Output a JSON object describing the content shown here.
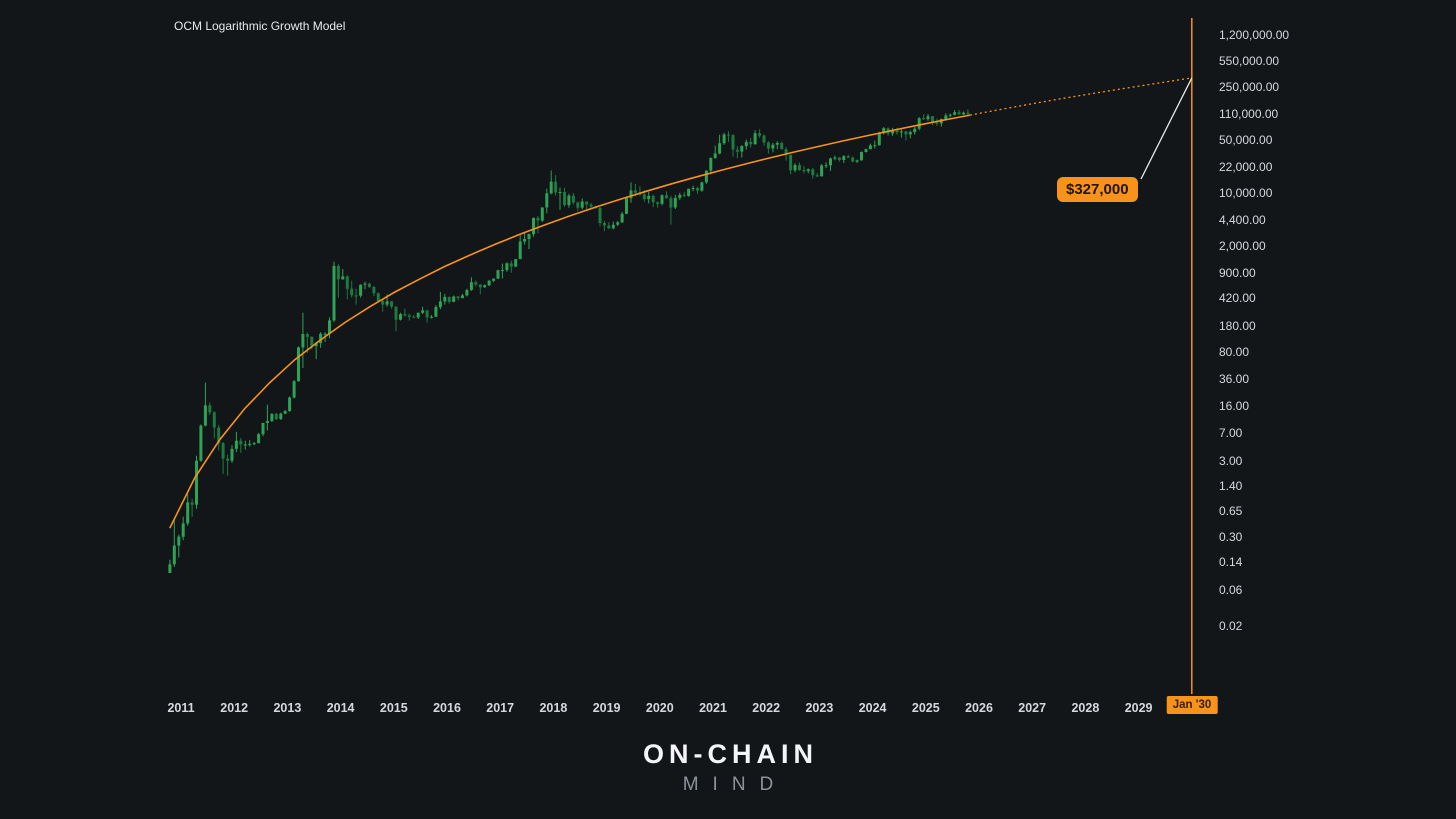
{
  "header": {
    "title": "OCM Logarithmic Growth Model"
  },
  "watermark": {
    "line1": "ON-CHAIN",
    "line2": "MIND"
  },
  "annotation": {
    "price_target_label": "$327,000",
    "target_date_label": "Jan '30"
  },
  "colors": {
    "background": "#131619",
    "candle_up": "#2fa355",
    "candle_down": "#1d7a40",
    "model_line": "#f7931a",
    "accent_orange": "#f7931a",
    "callout_bg": "#f7931a",
    "callout_text": "#241503",
    "axis_text": "#d5d8dd",
    "connector": "#e8e8e8"
  },
  "chart_data": {
    "type": "candlestick",
    "title": "OCM Logarithmic Growth Model",
    "y_scale": "log",
    "legend_position": "none",
    "grid": false,
    "y_axis_prices": [
      1200000,
      550000,
      250000,
      110000,
      50000,
      22000,
      10000,
      4400,
      2000,
      900,
      420,
      180,
      80,
      36,
      16,
      7,
      3,
      1.4,
      0.65,
      0.3,
      0.14,
      0.06,
      0.02
    ],
    "x_axis": {
      "years": [
        "2011",
        "2012",
        "2013",
        "2014",
        "2015",
        "2016",
        "2017",
        "2018",
        "2019",
        "2020",
        "2021",
        "2022",
        "2023",
        "2024",
        "2025",
        "2026",
        "2027",
        "2028",
        "2029"
      ],
      "highlight_label": "Jan '30"
    },
    "candles": {
      "start_month": "2010-10",
      "interval": "1M",
      "columns": [
        "high",
        "low",
        "close"
      ],
      "hlc": [
        [
          0.15,
          0.1,
          0.13
        ],
        [
          0.5,
          0.12,
          0.23
        ],
        [
          0.32,
          0.16,
          0.3
        ],
        [
          0.55,
          0.27,
          0.45
        ],
        [
          1.1,
          0.42,
          0.85
        ],
        [
          0.95,
          0.55,
          0.79
        ],
        [
          3.5,
          0.7,
          3.0
        ],
        [
          9.0,
          2.9,
          8.7
        ],
        [
          31.9,
          8.5,
          16.1
        ],
        [
          17.5,
          12.0,
          13.0
        ],
        [
          13.5,
          5.9,
          8.2
        ],
        [
          8.9,
          4.1,
          5.1
        ],
        [
          5.3,
          2.0,
          3.2
        ],
        [
          3.6,
          1.9,
          3.0
        ],
        [
          4.8,
          2.8,
          4.3
        ],
        [
          7.2,
          3.9,
          5.5
        ],
        [
          6.0,
          3.8,
          4.9
        ],
        [
          5.5,
          4.2,
          4.9
        ],
        [
          5.6,
          4.6,
          5.0
        ],
        [
          5.3,
          4.8,
          5.1
        ],
        [
          7.0,
          5.1,
          6.7
        ],
        [
          9.5,
          6.3,
          9.4
        ],
        [
          16.4,
          7.5,
          10.0
        ],
        [
          12.7,
          9.7,
          12.4
        ],
        [
          12.8,
          10.3,
          10.6
        ],
        [
          12.9,
          10.3,
          12.5
        ],
        [
          14.0,
          12.3,
          13.5
        ],
        [
          21.0,
          13.2,
          20.4
        ],
        [
          34.5,
          19.8,
          33.4
        ],
        [
          95.7,
          33.0,
          93.0
        ],
        [
          266,
          50.0,
          139
        ],
        [
          146,
          79.0,
          128
        ],
        [
          130,
          88.0,
          97.0
        ],
        [
          110,
          65.0,
          106
        ],
        [
          147,
          92.0,
          141
        ],
        [
          147,
          110,
          141
        ],
        [
          232,
          123,
          211
        ],
        [
          1242,
          200,
          1100
        ],
        [
          1160,
          420,
          732
        ],
        [
          1000,
          720,
          800
        ],
        [
          830,
          400,
          550
        ],
        [
          700,
          420,
          450
        ],
        [
          550,
          340,
          445
        ],
        [
          630,
          420,
          620
        ],
        [
          680,
          540,
          640
        ],
        [
          660,
          560,
          580
        ],
        [
          600,
          440,
          480
        ],
        [
          490,
          365,
          380
        ],
        [
          400,
          275,
          340
        ],
        [
          460,
          320,
          375
        ],
        [
          380,
          300,
          320
        ],
        [
          320,
          152,
          215
        ],
        [
          265,
          210,
          255
        ],
        [
          300,
          236,
          245
        ],
        [
          260,
          210,
          235
        ],
        [
          248,
          225,
          230
        ],
        [
          268,
          220,
          265
        ],
        [
          318,
          255,
          285
        ],
        [
          288,
          198,
          230
        ],
        [
          248,
          223,
          235
        ],
        [
          335,
          235,
          315
        ],
        [
          500,
          295,
          375
        ],
        [
          470,
          340,
          430
        ],
        [
          435,
          350,
          370
        ],
        [
          448,
          365,
          435
        ],
        [
          440,
          385,
          415
        ],
        [
          470,
          410,
          450
        ],
        [
          550,
          435,
          530
        ],
        [
          780,
          515,
          670
        ],
        [
          705,
          590,
          625
        ],
        [
          630,
          465,
          575
        ],
        [
          630,
          565,
          610
        ],
        [
          720,
          595,
          700
        ],
        [
          755,
          670,
          745
        ],
        [
          980,
          740,
          965
        ],
        [
          1180,
          750,
          970
        ],
        [
          1220,
          920,
          1190
        ],
        [
          1290,
          890,
          1080
        ],
        [
          1350,
          1060,
          1350
        ],
        [
          2780,
          1350,
          2300
        ],
        [
          3000,
          2100,
          2480
        ],
        [
          2930,
          1830,
          2875
        ],
        [
          4765,
          2670,
          4700
        ],
        [
          4980,
          2950,
          4340
        ],
        [
          6480,
          4150,
          6450
        ],
        [
          11400,
          5400,
          9900
        ],
        [
          19800,
          9600,
          14100
        ],
        [
          17200,
          9200,
          10200
        ],
        [
          11800,
          6000,
          10300
        ],
        [
          11700,
          6600,
          6930
        ],
        [
          9760,
          6430,
          9240
        ],
        [
          9990,
          7050,
          7500
        ],
        [
          7750,
          5770,
          6400
        ],
        [
          8500,
          6070,
          7730
        ],
        [
          7760,
          5860,
          7030
        ],
        [
          7410,
          6120,
          6630
        ],
        [
          6760,
          6200,
          6340
        ],
        [
          6540,
          3620,
          4020
        ],
        [
          4300,
          3150,
          3740
        ],
        [
          4110,
          3350,
          3440
        ],
        [
          4190,
          3330,
          3820
        ],
        [
          4290,
          3670,
          4100
        ],
        [
          5640,
          4030,
          5320
        ],
        [
          9070,
          5270,
          8560
        ],
        [
          13800,
          7450,
          10800
        ],
        [
          13150,
          9050,
          10100
        ],
        [
          12300,
          9230,
          9600
        ],
        [
          10950,
          7700,
          8300
        ],
        [
          10350,
          7300,
          9150
        ],
        [
          9500,
          6520,
          7550
        ],
        [
          7750,
          6430,
          7200
        ],
        [
          9550,
          6850,
          9350
        ],
        [
          10500,
          8400,
          8550
        ],
        [
          9200,
          3850,
          6440
        ],
        [
          9450,
          6150,
          8620
        ],
        [
          10050,
          8100,
          9450
        ],
        [
          10380,
          8830,
          9140
        ],
        [
          11440,
          8900,
          11350
        ],
        [
          12470,
          10550,
          11650
        ],
        [
          12050,
          9800,
          10780
        ],
        [
          14100,
          10400,
          13800
        ],
        [
          19860,
          13200,
          19700
        ],
        [
          29300,
          17600,
          29000
        ],
        [
          42000,
          28150,
          33100
        ],
        [
          58350,
          32300,
          45200
        ],
        [
          61800,
          43000,
          58800
        ],
        [
          64850,
          46930,
          57750
        ],
        [
          59600,
          30000,
          37300
        ],
        [
          41300,
          28800,
          35000
        ],
        [
          42400,
          29300,
          41500
        ],
        [
          50500,
          37300,
          47100
        ],
        [
          52900,
          39600,
          43800
        ],
        [
          67000,
          43300,
          61300
        ],
        [
          69000,
          53250,
          57000
        ],
        [
          59100,
          42000,
          46200
        ],
        [
          47990,
          32950,
          38500
        ],
        [
          45800,
          34300,
          43200
        ],
        [
          48200,
          37550,
          45500
        ],
        [
          47450,
          37580,
          37700
        ],
        [
          40000,
          26700,
          31800
        ],
        [
          31950,
          17600,
          19900
        ],
        [
          24670,
          18800,
          23300
        ],
        [
          25200,
          19550,
          20050
        ],
        [
          22800,
          18100,
          19400
        ],
        [
          21000,
          18150,
          20500
        ],
        [
          21480,
          15480,
          17150
        ],
        [
          18400,
          16250,
          16550
        ],
        [
          23960,
          16500,
          23100
        ],
        [
          25250,
          21400,
          23150
        ],
        [
          29200,
          19550,
          28500
        ],
        [
          31050,
          27050,
          29250
        ],
        [
          29850,
          25800,
          27200
        ],
        [
          31400,
          24800,
          30480
        ],
        [
          31800,
          28850,
          29230
        ],
        [
          30200,
          25350,
          25930
        ],
        [
          27500,
          24900,
          26970
        ],
        [
          35150,
          26550,
          34650
        ],
        [
          38400,
          34100,
          37700
        ],
        [
          44700,
          37600,
          42250
        ],
        [
          48970,
          38500,
          42580
        ],
        [
          64000,
          41880,
          61200
        ],
        [
          73800,
          59000,
          71330
        ],
        [
          72800,
          56500,
          60640
        ],
        [
          71950,
          56550,
          67500
        ],
        [
          71900,
          58400,
          62700
        ],
        [
          70000,
          53500,
          64600
        ],
        [
          65600,
          49050,
          58970
        ],
        [
          66500,
          52550,
          63300
        ],
        [
          73600,
          58900,
          70200
        ],
        [
          99800,
          66800,
          96400
        ],
        [
          108300,
          91200,
          93400
        ],
        [
          109350,
          89200,
          102400
        ],
        [
          102500,
          78250,
          84350
        ],
        [
          95000,
          76600,
          82550
        ],
        [
          95750,
          74500,
          94200
        ],
        [
          112000,
          93300,
          104600
        ],
        [
          110500,
          98300,
          107100
        ],
        [
          123200,
          105100,
          115800
        ],
        [
          124500,
          107300,
          108200
        ],
        [
          118000,
          107200,
          114000
        ],
        [
          126200,
          103600,
          110000
        ]
      ]
    },
    "model_curve": {
      "name": "OCM Logarithmic Growth Model",
      "solid": [
        [
          2010.79,
          0.39
        ],
        [
          2011.26,
          1.79
        ],
        [
          2011.73,
          5.7
        ],
        [
          2012.2,
          14.6
        ],
        [
          2012.67,
          32
        ],
        [
          2013.14,
          64
        ],
        [
          2013.61,
          115
        ],
        [
          2014.08,
          198
        ],
        [
          2014.55,
          319
        ],
        [
          2015.02,
          498
        ],
        [
          2015.49,
          741
        ],
        [
          2015.96,
          1081
        ],
        [
          2016.43,
          1524
        ],
        [
          2016.9,
          2109
        ],
        [
          2017.37,
          2863
        ],
        [
          2017.84,
          3802
        ],
        [
          2018.31,
          5000
        ],
        [
          2018.78,
          6466
        ],
        [
          2019.25,
          8241
        ],
        [
          2019.72,
          10400
        ],
        [
          2020.19,
          13000
        ],
        [
          2020.66,
          16100
        ],
        [
          2021.13,
          19720
        ],
        [
          2021.6,
          24000
        ],
        [
          2022.07,
          28970
        ],
        [
          2022.54,
          34750
        ],
        [
          2023.01,
          41400
        ],
        [
          2023.48,
          49050
        ],
        [
          2023.95,
          57800
        ],
        [
          2024.42,
          67650
        ],
        [
          2024.89,
          78900
        ],
        [
          2025.36,
          91600
        ],
        [
          2025.83,
          105900
        ]
      ],
      "dotted_projection": [
        [
          2025.83,
          105900
        ],
        [
          2026.4,
          125600
        ],
        [
          2026.96,
          147900
        ],
        [
          2027.52,
          173000
        ],
        [
          2028.09,
          201400
        ],
        [
          2028.65,
          232700
        ],
        [
          2029.21,
          268500
        ],
        [
          2030.0,
          327000
        ]
      ]
    },
    "annotations": {
      "price_target": {
        "label": "$327,000",
        "price": 327000,
        "date_label": "Jan '30",
        "t": 2030.0
      },
      "vertical_line_t": 2030.0
    }
  }
}
